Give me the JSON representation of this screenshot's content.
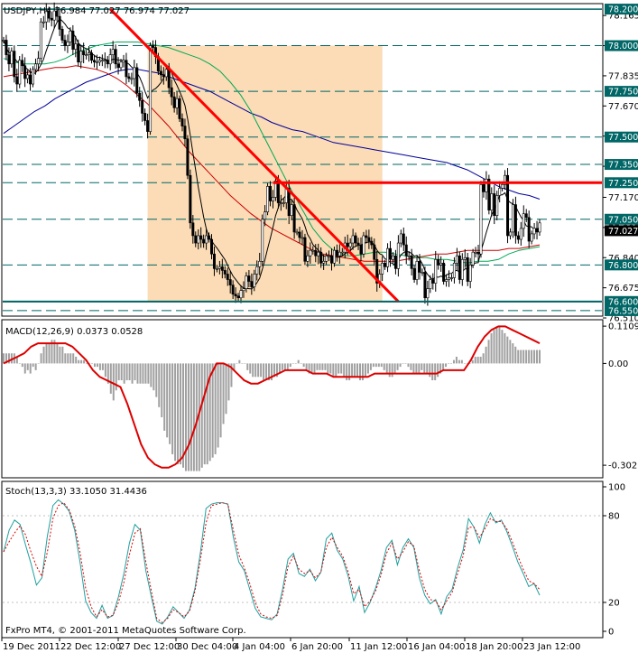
{
  "window": {
    "symbol_header": "USDJPY,H4  76.984 77.027 76.974 77.027",
    "footer": "FxPro MT4, © 2001-2011 MetaQuotes Software Corp."
  },
  "colors": {
    "candle": "#000000",
    "hline": "#006666",
    "trendline": "#ff0000",
    "ma_fast": "#000000",
    "ma_green": "#00aa55",
    "ma_red": "#cc0000",
    "ma_blue": "#000099",
    "shade": "#fbdcb6",
    "macd_hist": "#a0a0a0",
    "macd_signal": "#dd0000",
    "stoch_main": "#20a0a0",
    "stoch_signal": "#dd0000",
    "label_bg": "#006666",
    "current_bg": "#000000"
  },
  "x_axis_labels": [
    "19 Dec 2011",
    "22 Dec 12:00",
    "27 Dec 12:00",
    "30 Dec 04:00",
    "4 Jan 04:00",
    "6 Jan 20:00",
    "11 Jan 12:00",
    "16 Jan 04:00",
    "18 Jan 20:00",
    "23 Jan 12:00"
  ],
  "chart_data": [
    {
      "type": "candlestick",
      "title": "USDJPY,H4  76.984 77.027 76.974 77.027",
      "ylim": [
        76.52,
        78.23
      ],
      "price_ticks": [
        "78.165",
        "78.000",
        "77.835",
        "77.670",
        "77.505",
        "77.340",
        "77.170",
        "77.005",
        "76.840",
        "76.675",
        "76.510"
      ],
      "horizontal_levels": [
        "78.200",
        "78.000",
        "77.750",
        "77.500",
        "77.350",
        "77.250",
        "77.050",
        "76.800",
        "76.600",
        "76.550"
      ],
      "current_price": "77.027",
      "resistance_level": 77.25,
      "support_level": 76.6,
      "trendline": {
        "start_bar": 40,
        "start_price": 78.2,
        "end_bar": 148,
        "end_price": 76.6
      },
      "shaded_range": {
        "start_bar": 54,
        "end_bar": 142,
        "price_top": 78.0,
        "price_bottom": 76.6
      },
      "x_labels": [
        "19 Dec 2011",
        "22 Dec 12:00",
        "27 Dec 12:00",
        "30 Dec 04:00",
        "4 Jan 04:00",
        "6 Jan 20:00",
        "11 Jan 12:00",
        "16 Jan 04:00",
        "18 Jan 20:00",
        "23 Jan 12:00"
      ],
      "closes": [
        78.03,
        77.95,
        77.9,
        77.97,
        77.83,
        77.79,
        77.92,
        77.89,
        77.82,
        77.84,
        77.79,
        77.87,
        77.9,
        77.93,
        78.13,
        78.13,
        78.19,
        78.15,
        78.14,
        78.19,
        78.16,
        78.09,
        78.03,
        78.0,
        78.02,
        78.08,
        77.98,
        78.01,
        77.91,
        77.97,
        77.95,
        77.95,
        77.96,
        77.92,
        77.91,
        77.91,
        77.92,
        77.92,
        77.92,
        77.9,
        77.95,
        77.98,
        77.9,
        77.88,
        77.91,
        77.92,
        77.83,
        77.82,
        77.82,
        77.88,
        77.74,
        77.7,
        77.63,
        77.59,
        77.53,
        78.0,
        77.99,
        77.94,
        77.86,
        77.84,
        77.83,
        77.87,
        77.77,
        77.72,
        77.66,
        77.71,
        77.6,
        77.56,
        77.49,
        77.29,
        77.03,
        76.96,
        76.92,
        76.96,
        76.94,
        76.92,
        76.96,
        76.94,
        76.86,
        76.78,
        76.78,
        76.79,
        76.77,
        76.75,
        76.72,
        76.69,
        76.64,
        76.63,
        76.62,
        76.66,
        76.67,
        76.74,
        76.71,
        76.68,
        76.75,
        76.79,
        76.82,
        77.05,
        77.09,
        77.23,
        77.15,
        77.17,
        77.26,
        77.14,
        77.14,
        77.14,
        77.22,
        77.07,
        77.13,
        76.98,
        76.98,
        76.95,
        76.95,
        76.82,
        76.85,
        76.88,
        76.88,
        76.85,
        76.87,
        76.81,
        76.82,
        76.85,
        76.85,
        76.81,
        76.88,
        76.85,
        76.87,
        76.87,
        76.92,
        76.9,
        76.92,
        76.96,
        76.92,
        76.91,
        76.86,
        76.96,
        76.95,
        76.93,
        76.91,
        76.83,
        76.7,
        76.75,
        76.81,
        76.79,
        76.89,
        76.83,
        76.85,
        76.78,
        76.92,
        76.97,
        76.91,
        76.85,
        76.85,
        76.78,
        76.72,
        76.82,
        76.76,
        76.76,
        76.62,
        76.67,
        76.72,
        76.7,
        76.83,
        76.8,
        76.81,
        76.71,
        76.72,
        76.73,
        76.73,
        76.81,
        76.85,
        76.72,
        76.83,
        76.84,
        76.71,
        76.8,
        76.87,
        76.87,
        76.86,
        77.24,
        77.2,
        77.27,
        77.1,
        77.19,
        77.07,
        77.18,
        77.22,
        77.24,
        77.29,
        76.96,
        76.98,
        77.13,
        76.96,
        76.94,
        77.0,
        77.08,
        77.06,
        76.93,
        76.97,
        77.0,
        76.98,
        77.03
      ],
      "ma_green": [
        77.93,
        77.91,
        77.9,
        77.9,
        77.9,
        77.91,
        77.93,
        77.96,
        77.98,
        78.0,
        78.01,
        78.02,
        78.02,
        78.02,
        78.01,
        78.0,
        77.99,
        77.97,
        77.95,
        77.93,
        77.9,
        77.86,
        77.8,
        77.73,
        77.64,
        77.53,
        77.42,
        77.31,
        77.2,
        77.1,
        77.0,
        76.93,
        76.88,
        76.85,
        76.85,
        76.86,
        76.87,
        76.87,
        76.86,
        76.85,
        76.84,
        76.84,
        76.83,
        76.83,
        76.82,
        76.81,
        76.82,
        76.82,
        76.83,
        76.86,
        76.88,
        76.89,
        76.9
      ],
      "ma_red": [
        77.83,
        77.84,
        77.85,
        77.86,
        77.87,
        77.88,
        77.88,
        77.89,
        77.88,
        77.87,
        77.85,
        77.82,
        77.78,
        77.73,
        77.68,
        77.62,
        77.56,
        77.49,
        77.42,
        77.36,
        77.3,
        77.24,
        77.18,
        77.13,
        77.08,
        77.04,
        77.0,
        76.97,
        76.94,
        76.91,
        76.88,
        76.86,
        76.85,
        76.84,
        76.83,
        76.82,
        76.82,
        76.82,
        76.82,
        76.83,
        76.84,
        76.85,
        76.86,
        76.86,
        76.87,
        76.88,
        76.88,
        76.88,
        76.88,
        76.89,
        76.89,
        76.9,
        76.91
      ],
      "ma_blue": [
        77.52,
        77.56,
        77.6,
        77.64,
        77.67,
        77.71,
        77.74,
        77.77,
        77.8,
        77.82,
        77.84,
        77.86,
        77.87,
        77.87,
        77.86,
        77.85,
        77.83,
        77.81,
        77.79,
        77.77,
        77.75,
        77.72,
        77.69,
        77.66,
        77.63,
        77.61,
        77.58,
        77.56,
        77.54,
        77.53,
        77.51,
        77.49,
        77.47,
        77.46,
        77.45,
        77.44,
        77.43,
        77.42,
        77.41,
        77.4,
        77.39,
        77.38,
        77.37,
        77.36,
        77.34,
        77.32,
        77.29,
        77.26,
        77.23,
        77.21,
        77.19,
        77.18,
        77.16
      ]
    },
    {
      "type": "bar",
      "title": "MACD(12,26,9) 0.0373 0.0528",
      "ylim": [
        -0.34,
        0.13
      ],
      "ticks": [
        "0.1109",
        "0.00",
        "-0.3027"
      ],
      "histogram": [
        0.03,
        0.03,
        0.03,
        0.03,
        0.03,
        0.02,
        0.0,
        -0.01,
        -0.03,
        -0.02,
        -0.03,
        -0.01,
        -0.02,
        0.0,
        0.03,
        0.05,
        0.06,
        0.06,
        0.07,
        0.07,
        0.06,
        0.05,
        0.05,
        0.03,
        0.03,
        0.03,
        0.03,
        0.02,
        0.01,
        0.01,
        0.01,
        0.0,
        0.0,
        -0.0,
        -0.01,
        -0.01,
        -0.02,
        -0.02,
        -0.04,
        -0.06,
        -0.09,
        -0.11,
        -0.08,
        -0.05,
        -0.05,
        -0.06,
        -0.05,
        -0.05,
        -0.06,
        -0.05,
        -0.06,
        -0.06,
        -0.06,
        -0.06,
        -0.06,
        -0.07,
        -0.08,
        -0.1,
        -0.13,
        -0.16,
        -0.2,
        -0.22,
        -0.24,
        -0.27,
        -0.29,
        -0.3,
        -0.3,
        -0.31,
        -0.32,
        -0.32,
        -0.32,
        -0.32,
        -0.32,
        -0.32,
        -0.31,
        -0.3,
        -0.3,
        -0.29,
        -0.28,
        -0.27,
        -0.25,
        -0.22,
        -0.18,
        -0.15,
        -0.11,
        -0.07,
        -0.02,
        0.0,
        0.01,
        0.0,
        -0.0,
        -0.02,
        -0.03,
        -0.04,
        -0.04,
        -0.04,
        -0.04,
        -0.05,
        -0.05,
        -0.05,
        -0.05,
        -0.04,
        -0.04,
        -0.03,
        -0.02,
        -0.02,
        -0.02,
        -0.01,
        -0.0,
        0.0,
        0.01,
        0.0,
        -0.01,
        -0.02,
        -0.03,
        -0.03,
        -0.03,
        -0.02,
        -0.02,
        -0.02,
        -0.02,
        -0.03,
        -0.03,
        -0.04,
        -0.04,
        -0.03,
        -0.03,
        -0.04,
        -0.05,
        -0.05,
        -0.04,
        -0.04,
        -0.04,
        -0.05,
        -0.05,
        -0.04,
        -0.03,
        -0.02,
        -0.01,
        -0.01,
        -0.01,
        -0.01,
        -0.02,
        -0.03,
        -0.04,
        -0.04,
        -0.03,
        -0.02,
        -0.01,
        -0.0,
        -0.0,
        -0.01,
        -0.02,
        -0.03,
        -0.03,
        -0.03,
        -0.02,
        -0.03,
        -0.03,
        -0.04,
        -0.05,
        -0.05,
        -0.04,
        -0.03,
        -0.02,
        -0.01,
        -0.0,
        0.0,
        0.01,
        0.02,
        0.01,
        0.01,
        0.0,
        -0.0,
        -0.0,
        0.01,
        0.02,
        0.02,
        0.02,
        0.03,
        0.05,
        0.07,
        0.09,
        0.1,
        0.11,
        0.11,
        0.1,
        0.09,
        0.08,
        0.07,
        0.06,
        0.05,
        0.04,
        0.04,
        0.04,
        0.04,
        0.04,
        0.04,
        0.04,
        0.04,
        0.04
      ],
      "signal": [
        0.0,
        0.01,
        0.02,
        0.03,
        0.05,
        0.06,
        0.06,
        0.06,
        0.06,
        0.06,
        0.05,
        0.03,
        0.01,
        -0.02,
        -0.04,
        -0.05,
        -0.06,
        -0.07,
        -0.12,
        -0.18,
        -0.24,
        -0.28,
        -0.3,
        -0.31,
        -0.31,
        -0.3,
        -0.28,
        -0.24,
        -0.18,
        -0.11,
        -0.04,
        -0.0,
        0.0,
        -0.01,
        -0.03,
        -0.05,
        -0.06,
        -0.06,
        -0.05,
        -0.04,
        -0.03,
        -0.02,
        -0.02,
        -0.02,
        -0.02,
        -0.03,
        -0.03,
        -0.03,
        -0.04,
        -0.04,
        -0.04,
        -0.04,
        -0.04,
        -0.04,
        -0.03,
        -0.03,
        -0.03,
        -0.03,
        -0.03,
        -0.03,
        -0.03,
        -0.03,
        -0.03,
        -0.03,
        -0.02,
        -0.02,
        -0.02,
        -0.02,
        0.01,
        0.05,
        0.08,
        0.1,
        0.11,
        0.11,
        0.1,
        0.09,
        0.08,
        0.07,
        0.06
      ]
    },
    {
      "type": "line",
      "title": "Stoch(13,3,3) 33.1050 31.4436",
      "ylim": [
        0,
        100
      ],
      "ticks": [
        "100",
        "80",
        "20",
        "0"
      ],
      "main": [
        55,
        70,
        77,
        74,
        60,
        47,
        32,
        37,
        66,
        87,
        91,
        88,
        83,
        70,
        47,
        21,
        13,
        9,
        18,
        9,
        11,
        24,
        40,
        61,
        74,
        70,
        42,
        24,
        7,
        5,
        10,
        17,
        13,
        9,
        15,
        30,
        55,
        85,
        88,
        89,
        89,
        88,
        65,
        48,
        42,
        29,
        16,
        10,
        9,
        8,
        12,
        29,
        50,
        54,
        40,
        38,
        43,
        35,
        41,
        64,
        68,
        56,
        50,
        38,
        21,
        31,
        13,
        20,
        30,
        42,
        58,
        63,
        46,
        58,
        64,
        58,
        37,
        25,
        19,
        22,
        12,
        24,
        29,
        44,
        56,
        78,
        72,
        61,
        74,
        82,
        75,
        77,
        69,
        59,
        48,
        40,
        31,
        33,
        25
      ],
      "signal": [
        55,
        62,
        68,
        73,
        67,
        55,
        45,
        38,
        55,
        78,
        87,
        89,
        84,
        73,
        54,
        30,
        17,
        10,
        15,
        10,
        11,
        20,
        34,
        53,
        68,
        71,
        48,
        28,
        9,
        6,
        9,
        15,
        13,
        10,
        14,
        28,
        50,
        75,
        87,
        88,
        89,
        88,
        70,
        53,
        44,
        33,
        20,
        12,
        10,
        9,
        11,
        25,
        45,
        52,
        43,
        40,
        42,
        37,
        41,
        58,
        65,
        58,
        52,
        41,
        26,
        29,
        17,
        21,
        28,
        39,
        54,
        61,
        50,
        55,
        62,
        59,
        42,
        29,
        22,
        21,
        15,
        21,
        27,
        40,
        52,
        72,
        72,
        65,
        71,
        78,
        76,
        76,
        71,
        62,
        52,
        43,
        35,
        33,
        29
      ]
    }
  ]
}
